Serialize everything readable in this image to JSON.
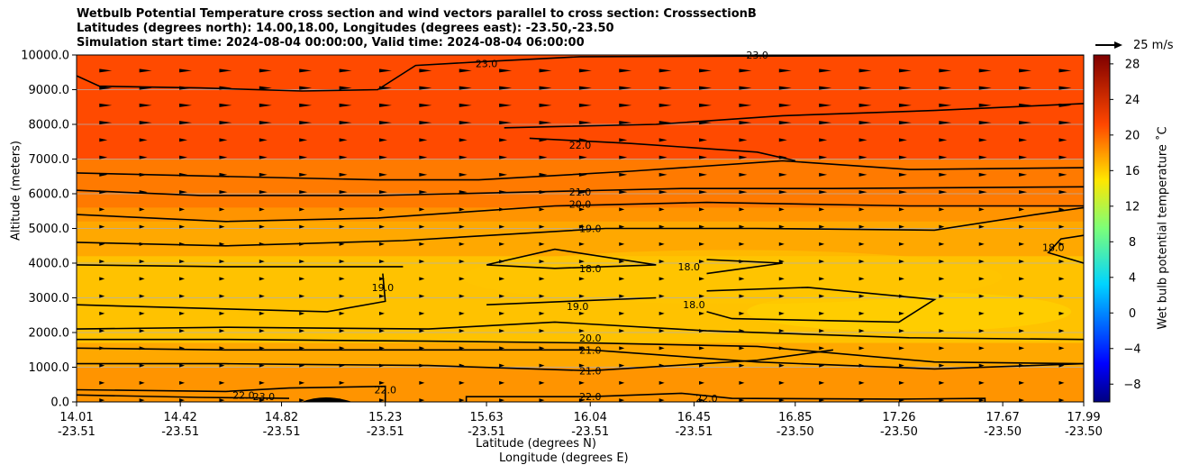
{
  "chart_data": {
    "type": "contour",
    "title_lines": [
      "Wetbulb Potential Temperature cross section and wind vectors parallel to cross section: CrosssectionB",
      "Latitudes (degrees north): 14.00,18.00, Longitudes (degrees east): -23.50,-23.50",
      "Simulation start time: 2024-08-04 00:00:00, Valid time: 2024-08-04 06:00:00"
    ],
    "ylabel": "Altitude (meters)",
    "xlabel_lat": "Latitude (degrees N)",
    "xlabel_lon": "Longitude (degrees E)",
    "ylim": [
      0,
      10000
    ],
    "yticks": [
      "0.0",
      "1000.0",
      "2000.0",
      "3000.0",
      "4000.0",
      "5000.0",
      "6000.0",
      "7000.0",
      "8000.0",
      "9000.0",
      "10000.0"
    ],
    "ytick_values": [
      0,
      1000,
      2000,
      3000,
      4000,
      5000,
      6000,
      7000,
      8000,
      9000,
      10000
    ],
    "xticks_lat": [
      "14.01",
      "14.42",
      "14.82",
      "15.23",
      "15.63",
      "16.04",
      "16.45",
      "16.85",
      "17.26",
      "17.67",
      "17.99"
    ],
    "xticks_lon": [
      "-23.51",
      "-23.51",
      "-23.51",
      "-23.51",
      "-23.51",
      "-23.51",
      "-23.51",
      "-23.50",
      "-23.50",
      "-23.50",
      "-23.50"
    ],
    "xtick_values": [
      14.01,
      14.42,
      14.82,
      15.23,
      15.63,
      16.04,
      16.45,
      16.85,
      17.26,
      17.67,
      17.99
    ],
    "xlim": [
      14.01,
      17.99
    ],
    "grid": "horizontal",
    "colorbar": {
      "label": "Wet bulb potential temperature $^\\circ$C",
      "label_text": "Wet bulb potential temperature ˚C",
      "range": [
        -10,
        29
      ],
      "ticks": [
        "−8",
        "−4",
        "0",
        "4",
        "8",
        "12",
        "16",
        "20",
        "24",
        "28"
      ],
      "tick_values": [
        -8,
        -4,
        0,
        4,
        8,
        12,
        16,
        20,
        24,
        28
      ],
      "colormap": "jet"
    },
    "quiver_key": "25 m/s",
    "contour_labels": [
      {
        "text": "23.0",
        "x": 15.63,
        "y": 9750
      },
      {
        "text": "23.0",
        "x": 16.7,
        "y": 10000
      },
      {
        "text": "22.0",
        "x": 16.0,
        "y": 7400
      },
      {
        "text": "21.0",
        "x": 16.0,
        "y": 6050
      },
      {
        "text": "20.0",
        "x": 16.0,
        "y": 5700
      },
      {
        "text": "19.0",
        "x": 16.04,
        "y": 5000
      },
      {
        "text": "18.0",
        "x": 16.04,
        "y": 3850
      },
      {
        "text": "18.0",
        "x": 16.43,
        "y": 3900
      },
      {
        "text": "18.0",
        "x": 16.45,
        "y": 2800
      },
      {
        "text": "18.0",
        "x": 17.87,
        "y": 4450
      },
      {
        "text": "19.0",
        "x": 15.22,
        "y": 3300
      },
      {
        "text": "19.0",
        "x": 15.99,
        "y": 2750
      },
      {
        "text": "20.0",
        "x": 16.04,
        "y": 1850
      },
      {
        "text": "21.0",
        "x": 16.04,
        "y": 1500
      },
      {
        "text": "21.0",
        "x": 16.04,
        "y": 900
      },
      {
        "text": "22.0",
        "x": 16.04,
        "y": 150
      },
      {
        "text": "22.0",
        "x": 16.5,
        "y": 100
      },
      {
        "text": "22.0",
        "x": 15.23,
        "y": 350
      },
      {
        "text": "22.0",
        "x": 14.67,
        "y": 200
      },
      {
        "text": "23.0",
        "x": 14.75,
        "y": 150
      }
    ]
  },
  "colors": {
    "field_dark": "#ff4a00",
    "field_mid": "#ff7a00",
    "field_warm": "#ff9400",
    "field_light": "#ffa800",
    "field_yellow": "#ffc200",
    "contour": "#000000",
    "grid": "#b0b0b0"
  }
}
